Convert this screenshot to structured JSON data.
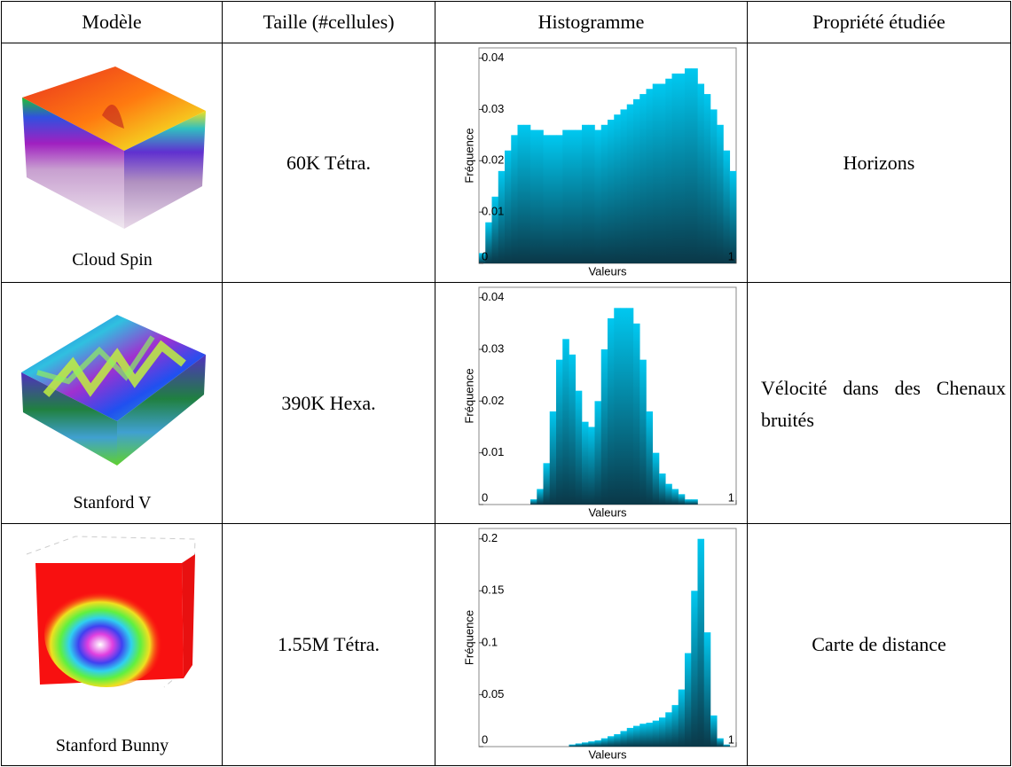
{
  "table": {
    "header": [
      "Modèle",
      "Taille (#cellules)",
      "Histogramme",
      "Propriété étudiée"
    ],
    "rows": [
      {
        "model": "Cloud Spin",
        "size": "60K Tétra.",
        "property": "Horizons"
      },
      {
        "model": "Stanford V",
        "size": "390K Hexa.",
        "property": "Vélocité dans des Chenaux bruités"
      },
      {
        "model": "Stanford Bunny",
        "size": "1.55M Tétra.",
        "property": "Carte de distance"
      }
    ]
  },
  "chart_data": [
    {
      "type": "histogram",
      "y_label": "Fréquence",
      "x_label": "Valeurs",
      "color": "#00c8f0",
      "bins": [
        0,
        0.025,
        0.05,
        0.075,
        0.1,
        0.125,
        0.15,
        0.175,
        0.2,
        0.225,
        0.25,
        0.275,
        0.3,
        0.325,
        0.35,
        0.375,
        0.4,
        0.425,
        0.45,
        0.475,
        0.5,
        0.525,
        0.55,
        0.575,
        0.6,
        0.625,
        0.65,
        0.675,
        0.7,
        0.725,
        0.75,
        0.775,
        0.8,
        0.825,
        0.85,
        0.875,
        0.9,
        0.925,
        0.95,
        0.975,
        1
      ],
      "values": [
        0.002,
        0.008,
        0.013,
        0.018,
        0.022,
        0.025,
        0.027,
        0.027,
        0.026,
        0.026,
        0.025,
        0.025,
        0.025,
        0.026,
        0.026,
        0.026,
        0.027,
        0.027,
        0.026,
        0.027,
        0.028,
        0.029,
        0.03,
        0.031,
        0.032,
        0.033,
        0.034,
        0.035,
        0.035,
        0.036,
        0.037,
        0.037,
        0.038,
        0.038,
        0.035,
        0.033,
        0.03,
        0.027,
        0.022,
        0.018
      ],
      "xlim": [
        0,
        1
      ],
      "xticks": [
        1
      ],
      "ylim": [
        0,
        0.042
      ],
      "yticks": [
        0,
        0.01,
        0.02,
        0.03,
        0.04
      ]
    },
    {
      "type": "histogram",
      "y_label": "Fréquence",
      "x_label": "Valeurs",
      "color": "#00c8f0",
      "bins": [
        0,
        0.025,
        0.05,
        0.075,
        0.1,
        0.125,
        0.15,
        0.175,
        0.2,
        0.225,
        0.25,
        0.275,
        0.3,
        0.325,
        0.35,
        0.375,
        0.4,
        0.425,
        0.45,
        0.475,
        0.5,
        0.525,
        0.55,
        0.575,
        0.6,
        0.625,
        0.65,
        0.675,
        0.7,
        0.725,
        0.75,
        0.775,
        0.8,
        0.825,
        0.85,
        0.875,
        0.9,
        0.925,
        0.95,
        0.975,
        1
      ],
      "values": [
        0,
        0,
        0,
        0,
        0,
        0,
        0,
        0,
        0.001,
        0.003,
        0.008,
        0.018,
        0.028,
        0.032,
        0.029,
        0.022,
        0.016,
        0.015,
        0.02,
        0.03,
        0.036,
        0.038,
        0.038,
        0.038,
        0.035,
        0.028,
        0.018,
        0.01,
        0.006,
        0.004,
        0.003,
        0.002,
        0.001,
        0.001,
        0,
        0,
        0,
        0,
        0,
        0
      ],
      "xlim": [
        0,
        1
      ],
      "xticks": [
        1
      ],
      "ylim": [
        0,
        0.042
      ],
      "yticks": [
        0,
        0.01,
        0.02,
        0.03,
        0.04
      ]
    },
    {
      "type": "histogram",
      "y_label": "Fréquence",
      "x_label": "Valeurs",
      "color": "#00c8f0",
      "bins": [
        0,
        0.025,
        0.05,
        0.075,
        0.1,
        0.125,
        0.15,
        0.175,
        0.2,
        0.225,
        0.25,
        0.275,
        0.3,
        0.325,
        0.35,
        0.375,
        0.4,
        0.425,
        0.45,
        0.475,
        0.5,
        0.525,
        0.55,
        0.575,
        0.6,
        0.625,
        0.65,
        0.675,
        0.7,
        0.725,
        0.75,
        0.775,
        0.8,
        0.825,
        0.85,
        0.875,
        0.9,
        0.925,
        0.95,
        0.975,
        1
      ],
      "values": [
        0,
        0,
        0,
        0,
        0,
        0,
        0,
        0,
        0,
        0,
        0,
        0,
        0,
        0,
        0.002,
        0.003,
        0.004,
        0.005,
        0.006,
        0.008,
        0.01,
        0.012,
        0.015,
        0.018,
        0.02,
        0.022,
        0.023,
        0.025,
        0.028,
        0.033,
        0.04,
        0.055,
        0.09,
        0.15,
        0.2,
        0.11,
        0.03,
        0.008,
        0.002,
        0
      ],
      "xlim": [
        0,
        1
      ],
      "xticks": [
        1
      ],
      "ylim": [
        0,
        0.21
      ],
      "yticks": [
        0,
        0.05,
        0.1,
        0.15,
        0.2
      ]
    }
  ]
}
